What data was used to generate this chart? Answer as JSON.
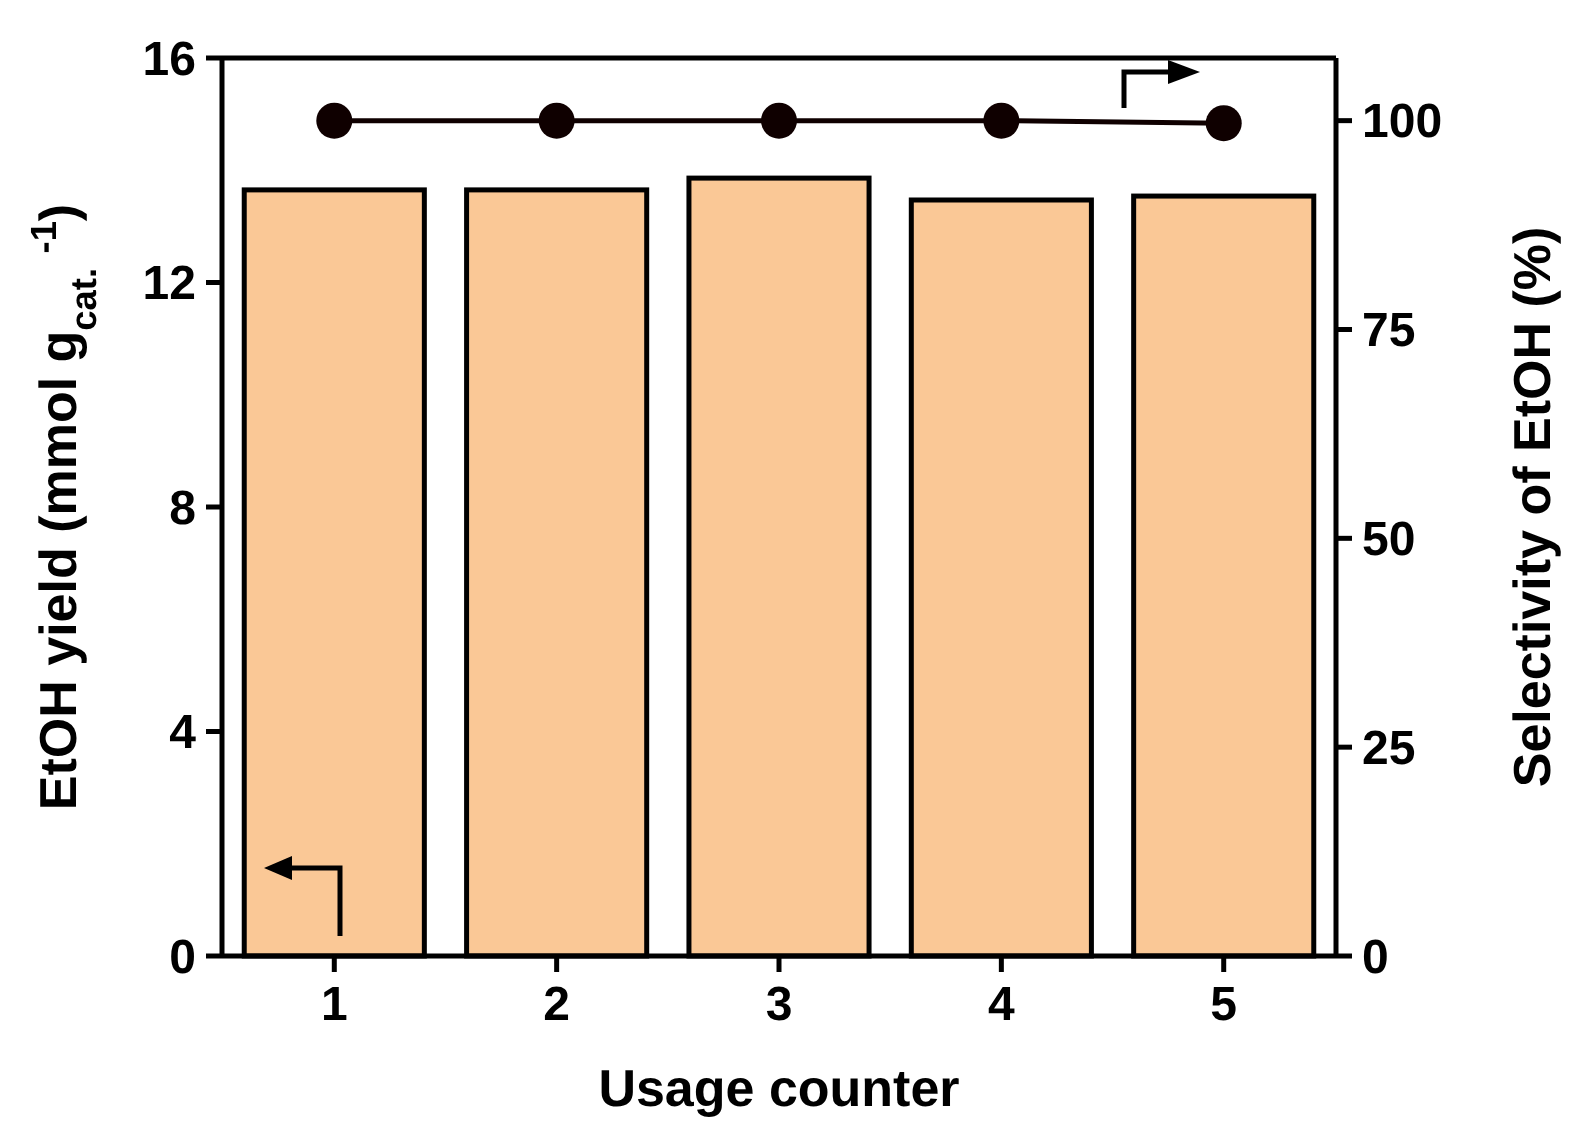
{
  "chart_data": {
    "type": "bar",
    "xlabel": "Usage counter",
    "ylabel": "EtOH yield (mmol g$_{cat.}$ $^{-1}$)",
    "y2label": "Selectivity of EtOH (%)",
    "categories": [
      "1",
      "2",
      "3",
      "4",
      "5"
    ],
    "series": [
      {
        "color": "#fac896",
        "values": [
          13.65,
          13.65,
          13.86,
          13.47,
          13.54
        ]
      },
      {
        "type": "line",
        "axis": "y2",
        "color": "#0f0000",
        "marker": "circle",
        "line_style": "solid",
        "values": [
          100,
          100,
          100,
          100,
          99.7
        ]
      }
    ],
    "ylim": [
      0,
      16
    ],
    "yticks": [
      0,
      4,
      8,
      12,
      16
    ],
    "y2lim": [
      0,
      107.5
    ],
    "y2ticks": [
      0,
      25,
      50,
      75,
      100
    ],
    "grid": false
  }
}
